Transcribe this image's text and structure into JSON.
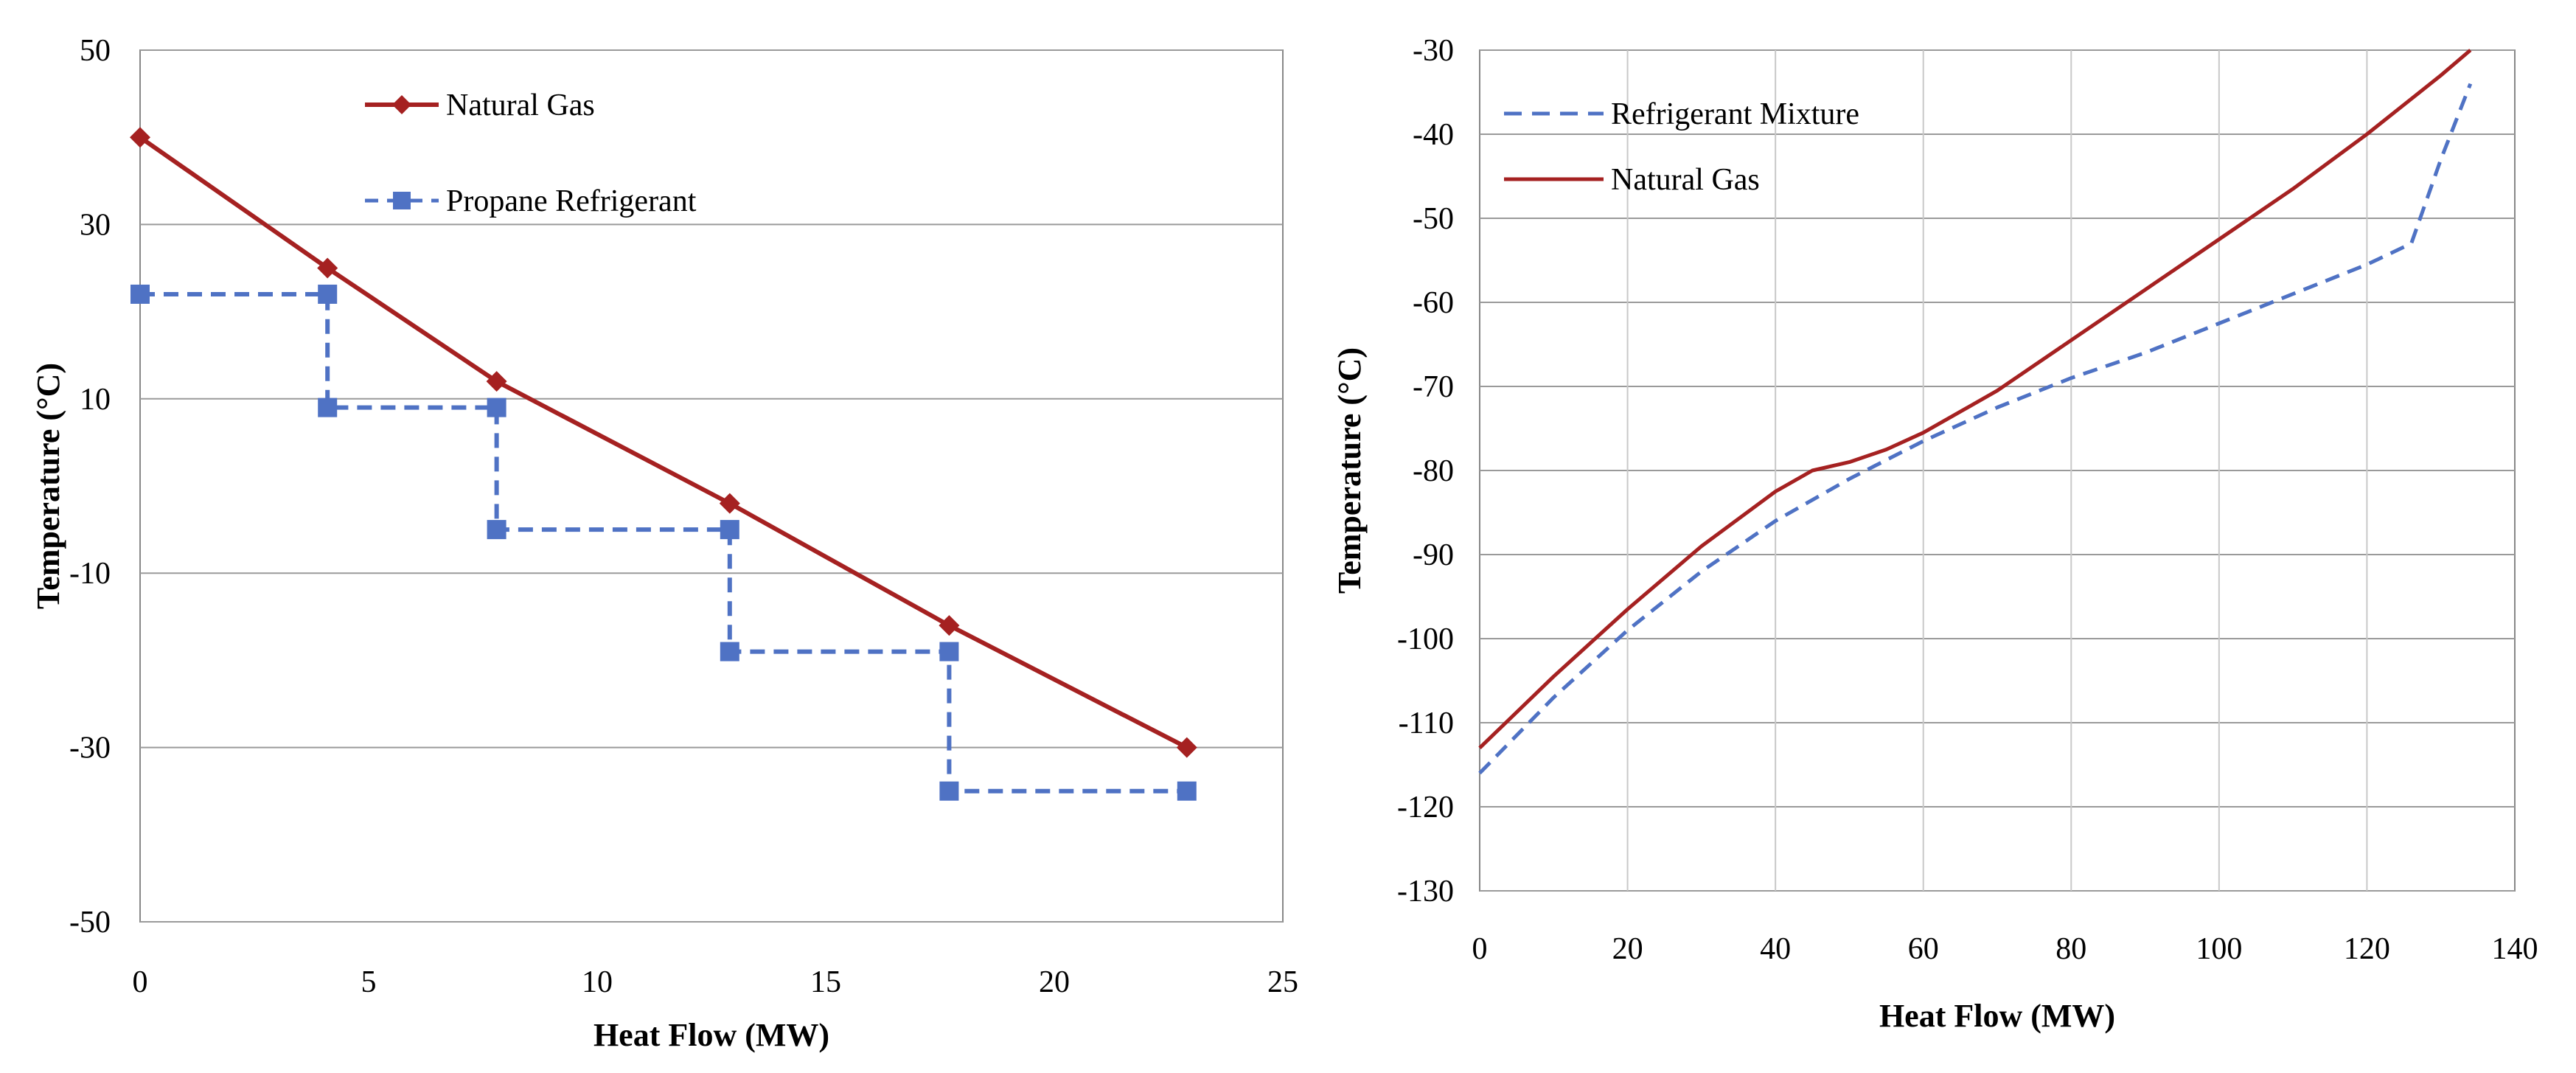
{
  "chart_data": [
    {
      "type": "line",
      "title": "",
      "xlabel": "Heat Flow (MW)",
      "ylabel": "Temperature (°C)",
      "xlim": [
        0,
        25
      ],
      "ylim": [
        -50,
        50
      ],
      "xticks": [
        "0",
        "5",
        "10",
        "15",
        "20",
        "25"
      ],
      "yticks": [
        "50",
        "30",
        "10",
        "-10",
        "-30",
        "-50"
      ],
      "grid": "horizontal",
      "legend_position": "top-left",
      "series": [
        {
          "name": "Natural Gas",
          "style": "solid",
          "marker": "diamond",
          "color": "#A52121",
          "x": [
            0,
            4.1,
            7.8,
            12.9,
            17.7,
            22.9
          ],
          "y": [
            40,
            25,
            12,
            -2,
            -16,
            -30
          ]
        },
        {
          "name": "Propane Refrigerant",
          "style": "dashed",
          "marker": "square",
          "color": "#4F72C4",
          "x": [
            0,
            4.1,
            4.1,
            7.8,
            7.8,
            12.9,
            12.9,
            17.7,
            17.7,
            22.9
          ],
          "y": [
            22,
            22,
            9,
            9,
            -5,
            -5,
            -19,
            -19,
            -35,
            -35
          ]
        }
      ]
    },
    {
      "type": "line",
      "title": "",
      "xlabel": "Heat Flow (MW)",
      "ylabel": "Temperature (°C)",
      "xlim": [
        0,
        140
      ],
      "ylim": [
        -130,
        -30
      ],
      "xticks": [
        "0",
        "20",
        "40",
        "60",
        "80",
        "100",
        "120",
        "140"
      ],
      "yticks": [
        "-30",
        "-40",
        "-50",
        "-60",
        "-70",
        "-80",
        "-90",
        "-100",
        "-110",
        "-120",
        "-130"
      ],
      "grid": "both",
      "legend_position": "top-left",
      "series": [
        {
          "name": "Refrigerant Mixture",
          "style": "dashed",
          "marker": "none",
          "color": "#4F72C4",
          "x": [
            0,
            10,
            20,
            30,
            40,
            50,
            60,
            70,
            80,
            90,
            100,
            110,
            120,
            126,
            130,
            134
          ],
          "y": [
            -116,
            -107,
            -99,
            -92,
            -86,
            -81,
            -76.5,
            -72.5,
            -69,
            -66,
            -62.5,
            -59,
            -55.5,
            -53,
            -43,
            -34
          ]
        },
        {
          "name": "Natural Gas",
          "style": "solid",
          "marker": "none",
          "color": "#A52121",
          "x": [
            0,
            10,
            20,
            30,
            40,
            45,
            50,
            55,
            60,
            70,
            80,
            90,
            100,
            110,
            120,
            125,
            130,
            134
          ],
          "y": [
            -113,
            -104.5,
            -96.5,
            -89,
            -82.5,
            -80,
            -79,
            -77.5,
            -75.5,
            -70.5,
            -64.5,
            -58.5,
            -52.5,
            -46.5,
            -40,
            -36.5,
            -33,
            -30
          ]
        }
      ]
    }
  ]
}
